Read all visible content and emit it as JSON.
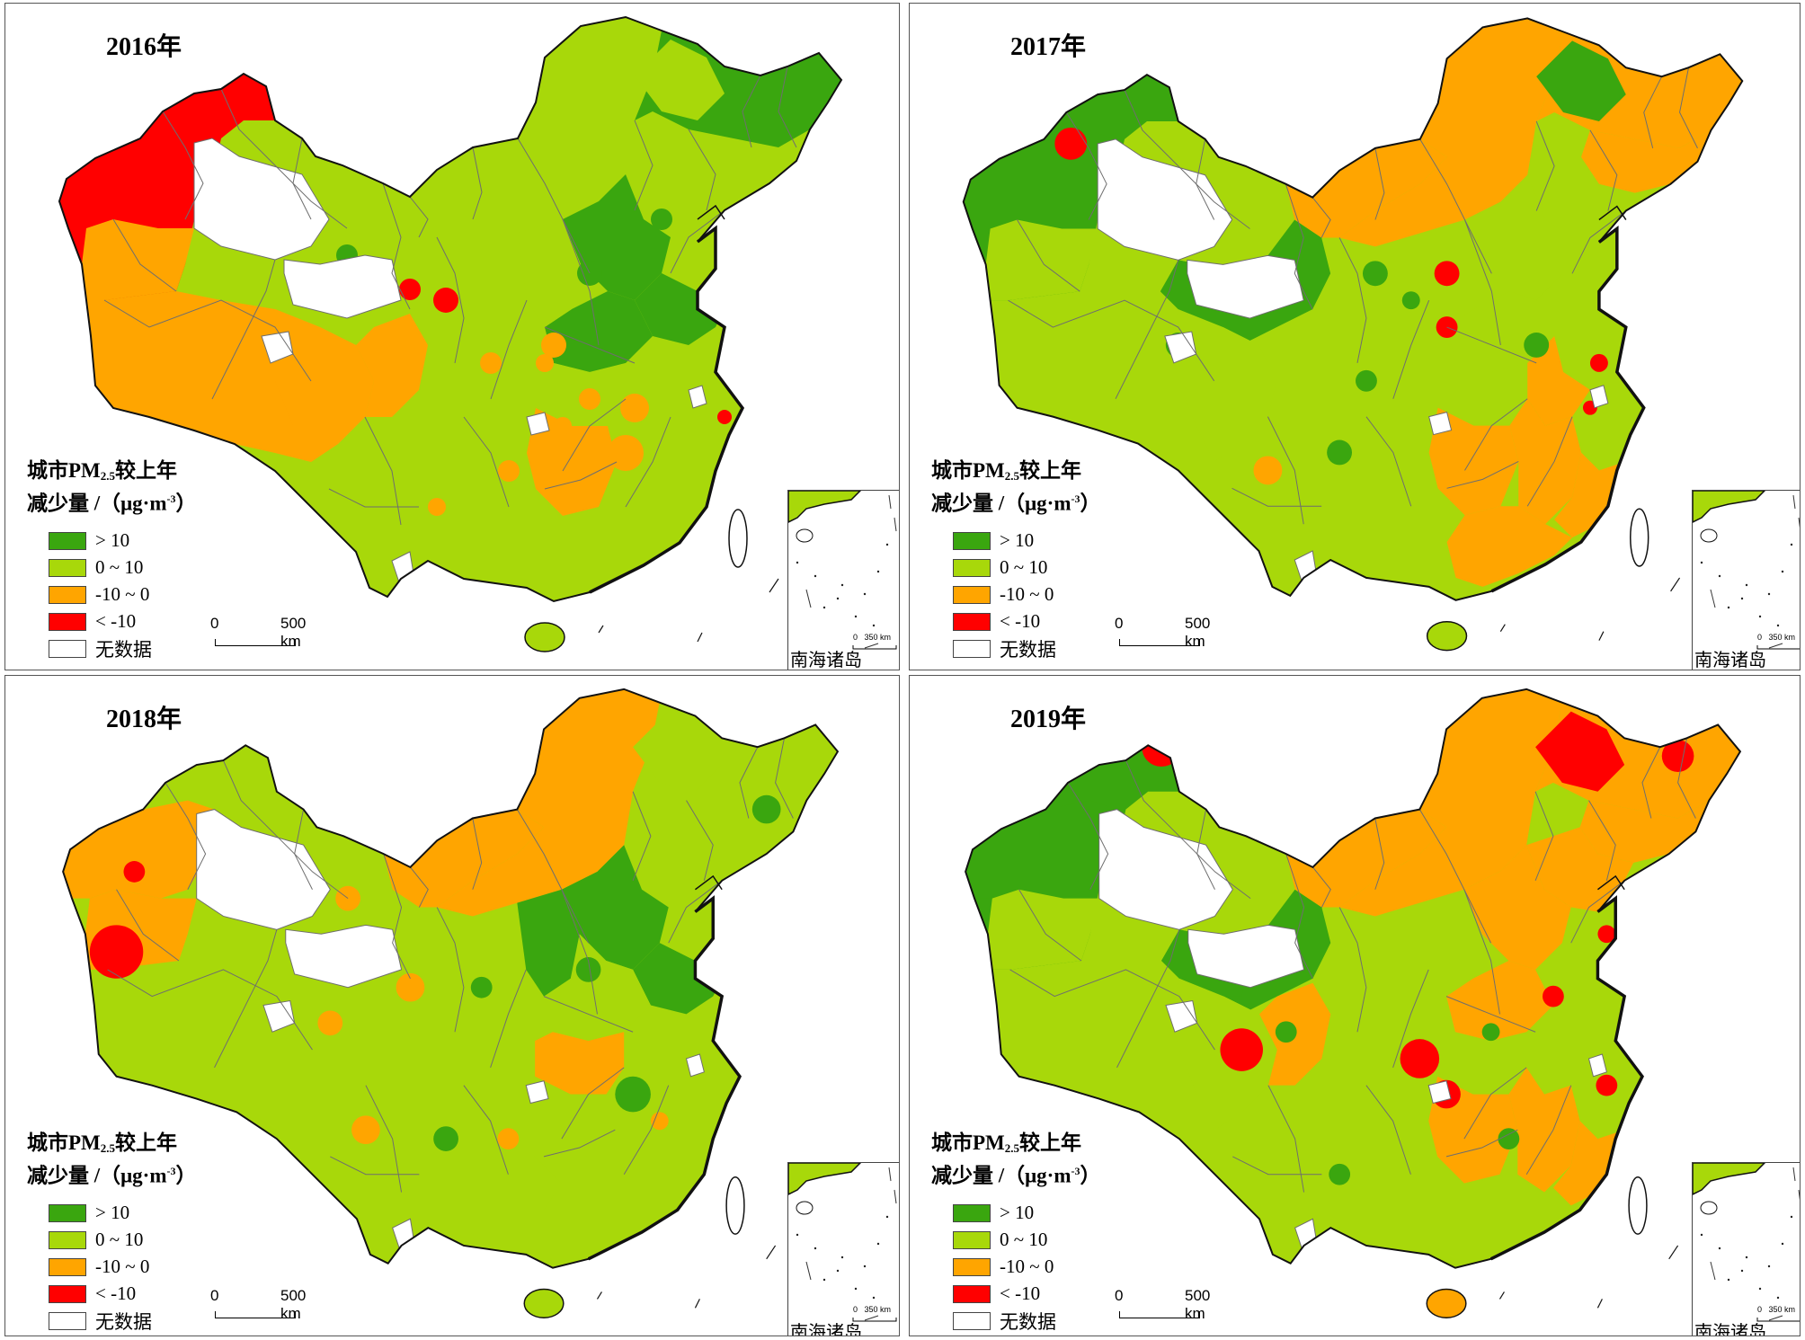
{
  "legend": {
    "title_line1_a": "城市PM",
    "title_line1_sub": "2.5",
    "title_line1_b": "较上年",
    "title_line2_a": "减少量 /（μg·m",
    "title_line2_sup": "-3",
    "title_line2_b": "）",
    "items": [
      {
        "label": "> 10",
        "color": "#3aa60f"
      },
      {
        "label": "0 ~ 10",
        "color": "#a8d80a"
      },
      {
        "label": "-10 ~ 0",
        "color": "#ffa500"
      },
      {
        "label": "< -10",
        "color": "#ff0000"
      },
      {
        "label": "无数据",
        "color": "#ffffff"
      }
    ]
  },
  "scale_bar": {
    "start": "0",
    "end": "500 km"
  },
  "inset": {
    "label": "南海诸岛",
    "scale_start": "0",
    "scale_end": "350 km"
  },
  "colors": {
    "boundary": "#6e6e6e",
    "coast": "#111111"
  },
  "panels": [
    {
      "year": "2016年"
    },
    {
      "year": "2017年"
    },
    {
      "year": "2018年"
    },
    {
      "year": "2019年"
    }
  ]
}
